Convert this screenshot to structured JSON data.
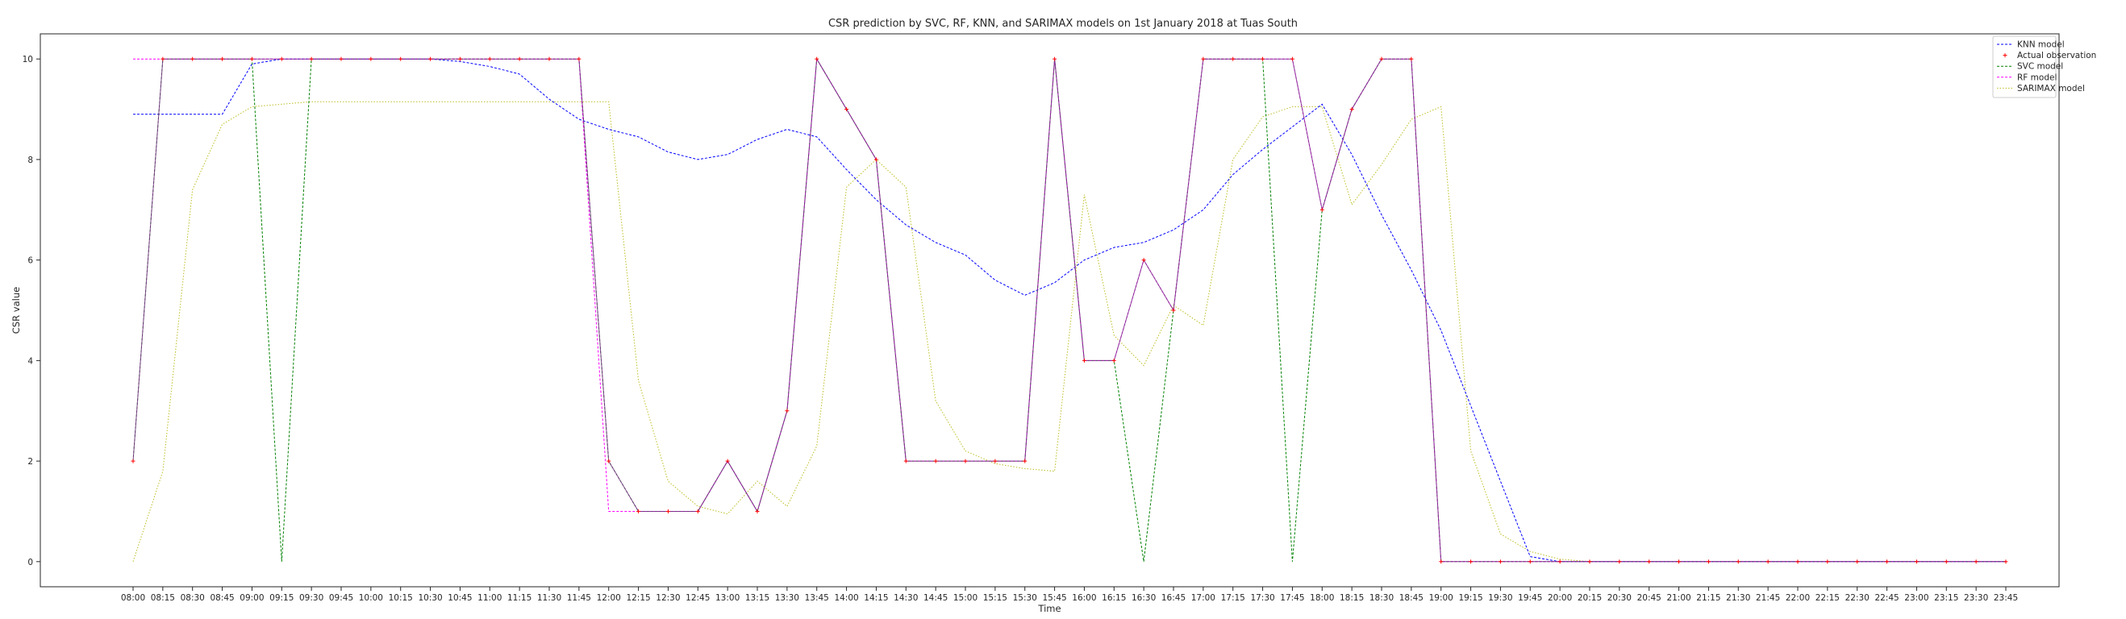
{
  "chart_data": {
    "type": "line",
    "title": "CSR prediction by SVC, RF, KNN, and SARIMAX models on 1st January 2018 at Tuas South",
    "xlabel": "Time",
    "ylabel": "CSR value",
    "ylim": [
      -0.5,
      10.5
    ],
    "yticks": [
      0,
      2,
      4,
      6,
      8,
      10
    ],
    "grid": false,
    "legend_position": "top-right",
    "categories": [
      "08:00",
      "08:15",
      "08:30",
      "08:45",
      "09:00",
      "09:15",
      "09:30",
      "09:45",
      "10:00",
      "10:15",
      "10:30",
      "10:45",
      "11:00",
      "11:15",
      "11:30",
      "11:45",
      "12:00",
      "12:15",
      "12:30",
      "12:45",
      "13:00",
      "13:15",
      "13:30",
      "13:45",
      "14:00",
      "14:15",
      "14:30",
      "14:45",
      "15:00",
      "15:15",
      "15:30",
      "15:45",
      "16:00",
      "16:15",
      "16:30",
      "16:45",
      "17:00",
      "17:15",
      "17:30",
      "17:45",
      "18:00",
      "18:15",
      "18:30",
      "18:45",
      "19:00",
      "19:15",
      "19:30",
      "19:45",
      "20:00",
      "20:15",
      "20:30",
      "20:45",
      "21:00",
      "21:15",
      "21:30",
      "21:45",
      "22:00",
      "22:15",
      "22:30",
      "22:45",
      "23:00",
      "23:15",
      "23:30",
      "23:45"
    ],
    "series": [
      {
        "name": "KNN model",
        "color": "#0000ff",
        "style": "dashed",
        "values": [
          8.9,
          8.9,
          8.9,
          8.9,
          9.9,
          10,
          10,
          10,
          10,
          10,
          10,
          9.95,
          9.85,
          9.7,
          9.2,
          8.8,
          8.6,
          8.45,
          8.15,
          8.0,
          8.1,
          8.4,
          8.6,
          8.45,
          7.8,
          7.2,
          6.7,
          6.35,
          6.1,
          5.6,
          5.3,
          5.55,
          6.0,
          6.25,
          6.35,
          6.6,
          7.0,
          7.7,
          8.2,
          8.65,
          9.1,
          8.1,
          6.9,
          5.8,
          4.6,
          3.1,
          1.6,
          0.1,
          0.0,
          0,
          0,
          0,
          0,
          0,
          0,
          0,
          0,
          0,
          0,
          0,
          0,
          0,
          0,
          0
        ]
      },
      {
        "name": "Actual observation",
        "color": "#ff0000",
        "style": "marker",
        "values": [
          2,
          10,
          10,
          10,
          10,
          10,
          10,
          10,
          10,
          10,
          10,
          10,
          10,
          10,
          10,
          10,
          2,
          1,
          1,
          1,
          2,
          1,
          3,
          10,
          9,
          8,
          2,
          2,
          2,
          2,
          2,
          10,
          4,
          4,
          6,
          5,
          10,
          10,
          10,
          10,
          7,
          9,
          10,
          10,
          0,
          0,
          0,
          0,
          0,
          0,
          0,
          0,
          0,
          0,
          0,
          0,
          0,
          0,
          0,
          0,
          0,
          0,
          0,
          0
        ]
      },
      {
        "name": "SVC model",
        "color": "#008000",
        "style": "dashed",
        "values": [
          2,
          10,
          10,
          10,
          10,
          0,
          10,
          10,
          10,
          10,
          10,
          10,
          10,
          10,
          10,
          10,
          2,
          1,
          1,
          1,
          2,
          1,
          3,
          10,
          9,
          8,
          2,
          2,
          2,
          2,
          2,
          10,
          4,
          4,
          0,
          5,
          10,
          10,
          10,
          0,
          7,
          9,
          10,
          10,
          0,
          0,
          0,
          0,
          0,
          0,
          0,
          0,
          0,
          0,
          0,
          0,
          0,
          0,
          0,
          0,
          0,
          0,
          0,
          0
        ]
      },
      {
        "name": "RF model",
        "color": "#ff00ff",
        "style": "dashed",
        "values": [
          10,
          10,
          10,
          10,
          10,
          10,
          10,
          10,
          10,
          10,
          10,
          10,
          10,
          10,
          10,
          10,
          1,
          1,
          1,
          1,
          2,
          1,
          3,
          10,
          9,
          8,
          2,
          2,
          2,
          2,
          2,
          10,
          4,
          4,
          6,
          5,
          10,
          10,
          10,
          10,
          7,
          9,
          10,
          10,
          0,
          0,
          0,
          0,
          0,
          0,
          0,
          0,
          0,
          0,
          0,
          0,
          0,
          0,
          0,
          0,
          0,
          0,
          0,
          0
        ]
      },
      {
        "name": "SARIMAX model",
        "color": "#bcbd22",
        "style": "dotted",
        "values": [
          0,
          1.8,
          7.4,
          8.7,
          9.05,
          9.1,
          9.15,
          9.15,
          9.15,
          9.15,
          9.15,
          9.15,
          9.15,
          9.15,
          9.15,
          9.15,
          9.15,
          3.6,
          1.6,
          1.1,
          0.95,
          1.6,
          1.1,
          2.3,
          7.45,
          8.0,
          7.45,
          3.2,
          2.2,
          1.95,
          1.85,
          1.8,
          7.3,
          4.5,
          3.9,
          5.1,
          4.7,
          8.0,
          8.85,
          9.05,
          9.05,
          7.1,
          7.9,
          8.8,
          9.05,
          2.2,
          0.55,
          0.2,
          0.05,
          0,
          0,
          0,
          0,
          0,
          0,
          0,
          0,
          0,
          0,
          0,
          0,
          0,
          0,
          0
        ]
      }
    ]
  }
}
